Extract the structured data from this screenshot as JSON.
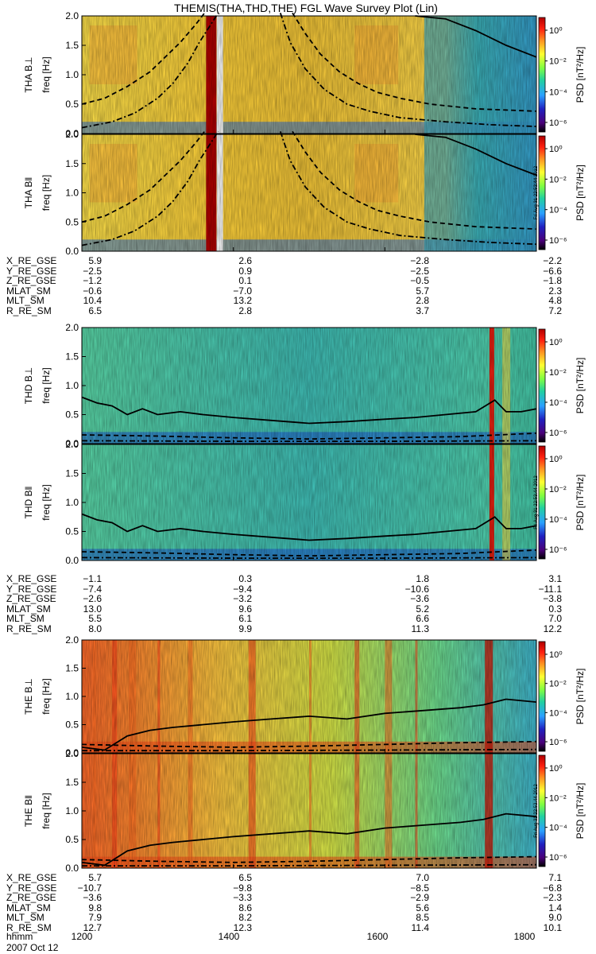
{
  "title": "THEMIS(THA,THD,THE) FGL Wave Survey Plot (Lin)",
  "colorbar": {
    "label": "PSD [nT²/Hz]",
    "ticks": [
      "10⁰",
      "10⁻²",
      "10⁻⁴",
      "10⁻⁶"
    ],
    "colors": [
      "#000000",
      "#4a007a",
      "#2020c0",
      "#2aa0ff",
      "#20d0a0",
      "#80ff40",
      "#ffff30",
      "#ff9020",
      "#ff2010",
      "#b00000"
    ]
  },
  "stamp": "Fri Aug 31 22:53:44 2012",
  "date": "2007 Oct 12",
  "time_axis": {
    "label": "hhmm",
    "ticks": [
      "1200",
      "1400",
      "1600",
      "1800"
    ]
  },
  "probes": [
    {
      "id": "THA",
      "panels": [
        {
          "ylabel_probe": "THA B⊥",
          "ylabel_freq": "freq [Hz]"
        },
        {
          "ylabel_probe": "THA B‖",
          "ylabel_freq": "freq [Hz]"
        }
      ],
      "ephem": [
        {
          "label": "X_RE_GSE",
          "values": [
            "5.9",
            "2.6",
            "−2.8",
            "−2.2"
          ]
        },
        {
          "label": "Y_RE_GSE",
          "values": [
            "−2.5",
            "0.9",
            "−2.5",
            "−6.6"
          ]
        },
        {
          "label": "Z_RE_GSE",
          "values": [
            "−1.2",
            "0.1",
            "−0.5",
            "−1.8"
          ]
        },
        {
          "label": "MLAT_SM",
          "values": [
            "−0.6",
            "−7.0",
            "5.7",
            "2.3"
          ]
        },
        {
          "label": "MLT_SM",
          "values": [
            "10.4",
            "13.2",
            "2.8",
            "4.8"
          ]
        },
        {
          "label": "R_RE_SM",
          "values": [
            "6.5",
            "2.8",
            "3.7",
            "7.2"
          ]
        }
      ]
    },
    {
      "id": "THD",
      "panels": [
        {
          "ylabel_probe": "THD B⊥",
          "ylabel_freq": "freq [Hz]"
        },
        {
          "ylabel_probe": "THD B‖",
          "ylabel_freq": "freq [Hz]"
        }
      ],
      "ephem": [
        {
          "label": "X_RE_GSE",
          "values": [
            "−1.1",
            "0.3",
            "1.8",
            "3.1"
          ]
        },
        {
          "label": "Y_RE_GSE",
          "values": [
            "−7.4",
            "−9.4",
            "−10.6",
            "−11.1"
          ]
        },
        {
          "label": "Z_RE_GSE",
          "values": [
            "−2.6",
            "−3.2",
            "−3.6",
            "−3.8"
          ]
        },
        {
          "label": "MLAT_SM",
          "values": [
            "13.0",
            "9.6",
            "5.2",
            "0.3"
          ]
        },
        {
          "label": "MLT_SM",
          "values": [
            "5.5",
            "6.1",
            "6.6",
            "7.0"
          ]
        },
        {
          "label": "R_RE_SM",
          "values": [
            "8.0",
            "9.9",
            "11.3",
            "12.2"
          ]
        }
      ]
    },
    {
      "id": "THE",
      "panels": [
        {
          "ylabel_probe": "THE B⊥",
          "ylabel_freq": "freq [Hz]"
        },
        {
          "ylabel_probe": "THE B‖",
          "ylabel_freq": "freq [Hz]"
        }
      ],
      "ephem": [
        {
          "label": "X_RE_GSE",
          "values": [
            "5.7",
            "6.5",
            "7.0",
            "7.1"
          ]
        },
        {
          "label": "Y_RE_GSE",
          "values": [
            "−10.7",
            "−9.8",
            "−8.5",
            "−6.8"
          ]
        },
        {
          "label": "Z_RE_GSE",
          "values": [
            "−3.6",
            "−3.3",
            "−2.9",
            "−2.3"
          ]
        },
        {
          "label": "MLAT_SM",
          "values": [
            "9.8",
            "8.6",
            "5.6",
            "1.4"
          ]
        },
        {
          "label": "MLT_SM",
          "values": [
            "7.9",
            "8.2",
            "8.5",
            "9.0"
          ]
        },
        {
          "label": "R_RE_SM",
          "values": [
            "12.7",
            "12.3",
            "11.4",
            "10.1"
          ]
        }
      ]
    }
  ],
  "chart_data": {
    "type": "heatmap",
    "title": "THEMIS(THA,THD,THE) FGL Wave Survey Plot (Lin)",
    "xlabel": "hhmm",
    "ylabel": "freq [Hz]",
    "colorbar_label": "PSD [nT²/Hz]",
    "x_ticks": [
      "1200",
      "1400",
      "1600",
      "1800"
    ],
    "xlim": [
      1200,
      1800
    ],
    "ylim": [
      0,
      2.0
    ],
    "y_ticks": [
      "0.0",
      "0.5",
      "1.0",
      "1.5",
      "2.0"
    ],
    "colorbar_ticks": [
      "10⁰",
      "10⁻²",
      "10⁻⁴",
      "10⁻⁶"
    ],
    "panels": [
      {
        "probe": "THA",
        "component": "B⊥",
        "style": "tha",
        "curves": [
          {
            "kind": "solid",
            "x": [
              1640,
              1680,
              1720,
              1760,
              1800
            ],
            "y": [
              2.0,
              1.95,
              1.75,
              1.5,
              1.3
            ]
          },
          {
            "kind": "dashed",
            "x": [
              1200,
              1230,
              1260,
              1290,
              1310,
              1330,
              1350,
              1362
            ],
            "y": [
              0.5,
              0.6,
              0.8,
              1.05,
              1.3,
              1.55,
              1.85,
              2.05
            ]
          },
          {
            "kind": "dashed",
            "x": [
              1478,
              1495,
              1515,
              1540,
              1565,
              1590,
              1620,
              1660,
              1720,
              1800
            ],
            "y": [
              2.05,
              1.7,
              1.35,
              1.05,
              0.85,
              0.7,
              0.6,
              0.5,
              0.42,
              0.38
            ]
          },
          {
            "kind": "dashdot",
            "x": [
              1200,
              1240,
              1270,
              1300,
              1320,
              1340,
              1355,
              1370,
              1380
            ],
            "y": [
              0.1,
              0.2,
              0.35,
              0.6,
              0.85,
              1.2,
              1.55,
              1.85,
              2.05
            ]
          },
          {
            "kind": "dashdot",
            "x": [
              1462,
              1475,
              1495,
              1520,
              1550,
              1580,
              1620,
              1680,
              1740,
              1800
            ],
            "y": [
              2.05,
              1.55,
              1.1,
              0.75,
              0.5,
              0.38,
              0.27,
              0.2,
              0.15,
              0.12
            ]
          }
        ]
      },
      {
        "probe": "THA",
        "component": "B‖",
        "style": "tha",
        "curves": [
          {
            "kind": "solid",
            "x": [
              1640,
              1680,
              1720,
              1760,
              1800
            ],
            "y": [
              2.0,
              1.95,
              1.75,
              1.5,
              1.3
            ]
          },
          {
            "kind": "dashed",
            "x": [
              1200,
              1230,
              1260,
              1290,
              1310,
              1330,
              1350,
              1362
            ],
            "y": [
              0.5,
              0.6,
              0.8,
              1.05,
              1.3,
              1.55,
              1.85,
              2.05
            ]
          },
          {
            "kind": "dashed",
            "x": [
              1478,
              1495,
              1515,
              1540,
              1565,
              1590,
              1620,
              1660,
              1720,
              1800
            ],
            "y": [
              2.05,
              1.7,
              1.35,
              1.05,
              0.85,
              0.7,
              0.6,
              0.5,
              0.42,
              0.38
            ]
          },
          {
            "kind": "dashdot",
            "x": [
              1200,
              1240,
              1270,
              1300,
              1320,
              1340,
              1355,
              1370,
              1380
            ],
            "y": [
              0.1,
              0.2,
              0.35,
              0.6,
              0.85,
              1.2,
              1.55,
              1.85,
              2.05
            ]
          },
          {
            "kind": "dashdot",
            "x": [
              1462,
              1475,
              1495,
              1520,
              1550,
              1580,
              1620,
              1680,
              1740,
              1800
            ],
            "y": [
              2.05,
              1.55,
              1.1,
              0.75,
              0.5,
              0.38,
              0.27,
              0.2,
              0.15,
              0.12
            ]
          }
        ]
      },
      {
        "probe": "THD",
        "component": "B⊥",
        "style": "thd",
        "curves": [
          {
            "kind": "solid",
            "x": [
              1200,
              1220,
              1240,
              1260,
              1280,
              1300,
              1330,
              1360,
              1400,
              1450,
              1500,
              1550,
              1600,
              1640,
              1680,
              1720,
              1745,
              1760,
              1780,
              1800
            ],
            "y": [
              0.8,
              0.7,
              0.65,
              0.5,
              0.6,
              0.5,
              0.55,
              0.5,
              0.45,
              0.4,
              0.35,
              0.38,
              0.42,
              0.45,
              0.5,
              0.55,
              0.75,
              0.55,
              0.55,
              0.6
            ]
          },
          {
            "kind": "dashed",
            "x": [
              1200,
              1300,
              1400,
              1500,
              1600,
              1700,
              1800
            ],
            "y": [
              0.15,
              0.13,
              0.1,
              0.08,
              0.1,
              0.12,
              0.18
            ]
          },
          {
            "kind": "dashdot",
            "x": [
              1200,
              1400,
              1600,
              1800
            ],
            "y": [
              0.05,
              0.04,
              0.04,
              0.05
            ]
          }
        ]
      },
      {
        "probe": "THD",
        "component": "B‖",
        "style": "thd",
        "curves": [
          {
            "kind": "solid",
            "x": [
              1200,
              1220,
              1240,
              1260,
              1280,
              1300,
              1330,
              1360,
              1400,
              1450,
              1500,
              1550,
              1600,
              1640,
              1680,
              1720,
              1745,
              1760,
              1780,
              1800
            ],
            "y": [
              0.8,
              0.7,
              0.65,
              0.5,
              0.6,
              0.5,
              0.55,
              0.5,
              0.45,
              0.4,
              0.35,
              0.38,
              0.42,
              0.45,
              0.5,
              0.55,
              0.75,
              0.55,
              0.55,
              0.6
            ]
          },
          {
            "kind": "dashed",
            "x": [
              1200,
              1300,
              1400,
              1500,
              1600,
              1700,
              1800
            ],
            "y": [
              0.15,
              0.13,
              0.1,
              0.08,
              0.1,
              0.12,
              0.18
            ]
          },
          {
            "kind": "dashdot",
            "x": [
              1200,
              1400,
              1600,
              1800
            ],
            "y": [
              0.05,
              0.04,
              0.04,
              0.05
            ]
          }
        ]
      },
      {
        "probe": "THE",
        "component": "B⊥",
        "style": "the",
        "curves": [
          {
            "kind": "solid",
            "x": [
              1200,
              1230,
              1260,
              1290,
              1320,
              1360,
              1400,
              1450,
              1500,
              1550,
              1600,
              1650,
              1700,
              1730,
              1760,
              1800
            ],
            "y": [
              0.1,
              0.05,
              0.3,
              0.4,
              0.45,
              0.5,
              0.55,
              0.6,
              0.65,
              0.6,
              0.7,
              0.75,
              0.8,
              0.85,
              0.95,
              0.9
            ]
          },
          {
            "kind": "dashed",
            "x": [
              1200,
              1300,
              1400,
              1500,
              1600,
              1700,
              1800
            ],
            "y": [
              0.15,
              0.12,
              0.1,
              0.12,
              0.15,
              0.18,
              0.2
            ]
          },
          {
            "kind": "dashdot",
            "x": [
              1200,
              1400,
              1600,
              1800
            ],
            "y": [
              0.04,
              0.04,
              0.05,
              0.06
            ]
          }
        ]
      },
      {
        "probe": "THE",
        "component": "B‖",
        "style": "the",
        "curves": [
          {
            "kind": "solid",
            "x": [
              1200,
              1230,
              1260,
              1290,
              1320,
              1360,
              1400,
              1450,
              1500,
              1550,
              1600,
              1650,
              1700,
              1730,
              1760,
              1800
            ],
            "y": [
              0.1,
              0.05,
              0.3,
              0.4,
              0.45,
              0.5,
              0.55,
              0.6,
              0.65,
              0.6,
              0.7,
              0.75,
              0.8,
              0.85,
              0.95,
              0.9
            ]
          },
          {
            "kind": "dashed",
            "x": [
              1200,
              1300,
              1400,
              1500,
              1600,
              1700,
              1800
            ],
            "y": [
              0.15,
              0.12,
              0.1,
              0.12,
              0.15,
              0.18,
              0.2
            ]
          },
          {
            "kind": "dashdot",
            "x": [
              1200,
              1400,
              1600,
              1800
            ],
            "y": [
              0.04,
              0.04,
              0.05,
              0.06
            ]
          }
        ]
      }
    ]
  }
}
